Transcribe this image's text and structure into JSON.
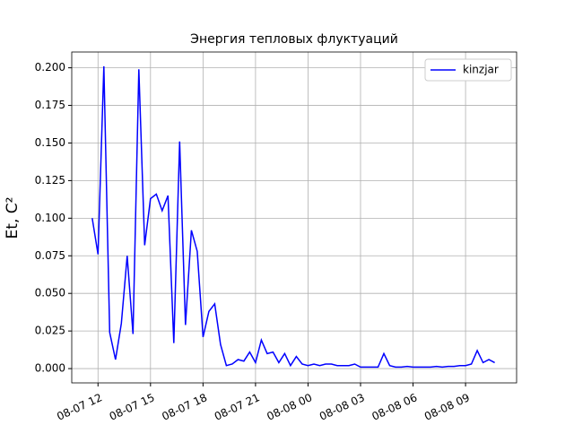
{
  "chart_data": {
    "type": "line",
    "title": "Энергия тепловых флуктуаций",
    "ylabel": "Et, C²",
    "x": [
      "08-07 11:40",
      "08-07 12:00",
      "08-07 12:20",
      "08-07 12:40",
      "08-07 13:00",
      "08-07 13:20",
      "08-07 13:40",
      "08-07 14:00",
      "08-07 14:20",
      "08-07 14:40",
      "08-07 15:00",
      "08-07 15:20",
      "08-07 15:40",
      "08-07 16:00",
      "08-07 16:20",
      "08-07 16:40",
      "08-07 17:00",
      "08-07 17:20",
      "08-07 17:40",
      "08-07 18:00",
      "08-07 18:20",
      "08-07 18:40",
      "08-07 19:00",
      "08-07 19:20",
      "08-07 19:40",
      "08-07 20:00",
      "08-07 20:20",
      "08-07 20:40",
      "08-07 21:00",
      "08-07 21:20",
      "08-07 21:40",
      "08-07 22:00",
      "08-07 22:20",
      "08-07 22:40",
      "08-07 23:00",
      "08-07 23:20",
      "08-07 23:40",
      "08-08 00:00",
      "08-08 00:20",
      "08-08 00:40",
      "08-08 01:00",
      "08-08 01:20",
      "08-08 01:40",
      "08-08 02:00",
      "08-08 02:20",
      "08-08 02:40",
      "08-08 03:00",
      "08-08 03:20",
      "08-08 03:40",
      "08-08 04:00",
      "08-08 04:20",
      "08-08 04:40",
      "08-08 05:00",
      "08-08 05:20",
      "08-08 05:40",
      "08-08 06:00",
      "08-08 06:20",
      "08-08 06:40",
      "08-08 07:00",
      "08-08 07:20",
      "08-08 07:40",
      "08-08 08:00",
      "08-08 08:20",
      "08-08 08:40",
      "08-08 09:00",
      "08-08 09:20",
      "08-08 09:40",
      "08-08 10:00",
      "08-08 10:20",
      "08-08 10:40"
    ],
    "series": [
      {
        "name": "kinzjar",
        "color": "#0000ff",
        "values": [
          0.1,
          0.076,
          0.201,
          0.024,
          0.006,
          0.03,
          0.075,
          0.023,
          0.199,
          0.082,
          0.113,
          0.116,
          0.105,
          0.115,
          0.017,
          0.151,
          0.029,
          0.092,
          0.078,
          0.021,
          0.038,
          0.043,
          0.016,
          0.002,
          0.003,
          0.006,
          0.005,
          0.011,
          0.004,
          0.019,
          0.01,
          0.011,
          0.004,
          0.01,
          0.002,
          0.008,
          0.003,
          0.002,
          0.003,
          0.002,
          0.003,
          0.003,
          0.002,
          0.002,
          0.002,
          0.003,
          0.001,
          0.001,
          0.001,
          0.001,
          0.01,
          0.002,
          0.001,
          0.001,
          0.0015,
          0.001,
          0.001,
          0.001,
          0.001,
          0.0015,
          0.001,
          0.0015,
          0.0015,
          0.002,
          0.002,
          0.003,
          0.012,
          0.004,
          0.006,
          0.004
        ]
      }
    ],
    "xlim": [
      "08-07 10:30",
      "08-08 11:55"
    ],
    "xticks": [
      "08-07 12",
      "08-07 15",
      "08-07 18",
      "08-07 21",
      "08-08 00",
      "08-08 03",
      "08-08 06",
      "08-08 09"
    ],
    "ylim": [
      -0.0095,
      0.2105
    ],
    "yticks": [
      {
        "value": 0,
        "label": "0.000"
      },
      {
        "value": 0.025,
        "label": "0.025"
      },
      {
        "value": 0.05,
        "label": "0.050"
      },
      {
        "value": 0.075,
        "label": "0.075"
      },
      {
        "value": 0.1,
        "label": "0.100"
      },
      {
        "value": 0.125,
        "label": "0.125"
      },
      {
        "value": 0.15,
        "label": "0.150"
      },
      {
        "value": 0.175,
        "label": "0.175"
      },
      {
        "value": 0.2,
        "label": "0.200"
      }
    ],
    "grid": true,
    "legend": "upper right"
  }
}
